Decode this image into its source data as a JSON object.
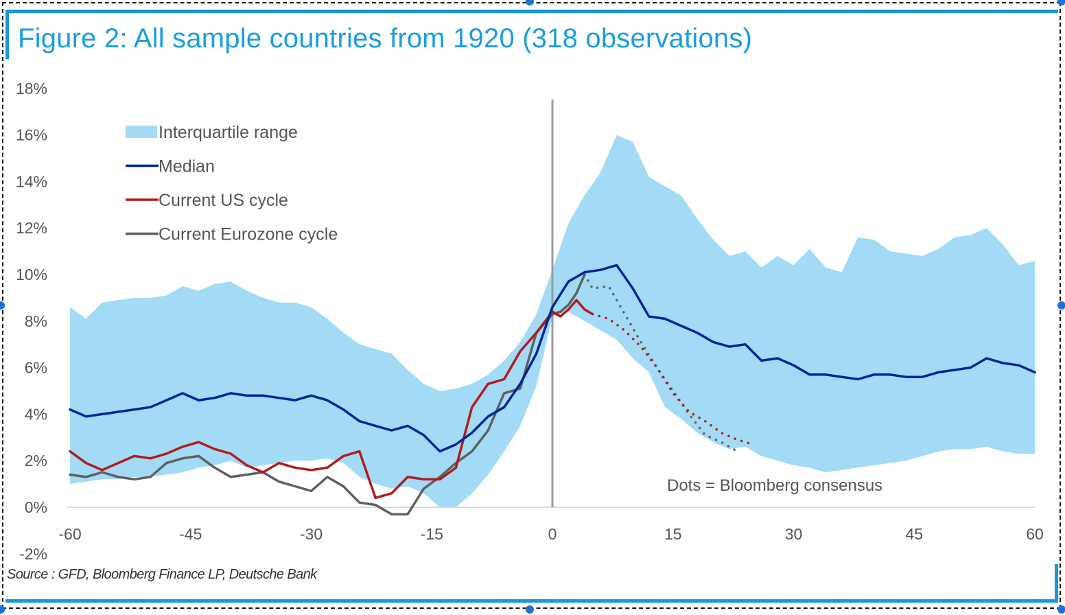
{
  "figure": {
    "title": "Figure 2: All sample countries from 1920 (318 observations)",
    "source": "Source : GFD, Bloomberg Finance LP, Deutsche Bank"
  },
  "colors": {
    "title": "#1a9ee0",
    "frame": "#1898d8",
    "iqr": "#a3dbf6",
    "median": "#00239c",
    "us": "#b01c1c",
    "ez": "#606060",
    "zero_line": "#9a9a9a",
    "handle": "#1a73d9"
  },
  "chart_data": {
    "type": "area",
    "title": "Figure 2: All sample countries from 1920 (318 observations)",
    "xlabel": "",
    "ylabel": "",
    "xlim": [
      -60,
      60
    ],
    "ylim": [
      -2,
      18
    ],
    "xticks": [
      -60,
      -45,
      -30,
      -15,
      0,
      15,
      30,
      45,
      60
    ],
    "xtick_labels": [
      "-60",
      "-45",
      "-30",
      "-15",
      "0",
      "15",
      "30",
      "45",
      "60"
    ],
    "yticks": [
      -2,
      0,
      2,
      4,
      6,
      8,
      10,
      12,
      14,
      16,
      18
    ],
    "ytick_labels": [
      "-2%",
      "0%",
      "2%",
      "4%",
      "6%",
      "8%",
      "10%",
      "12%",
      "14%",
      "16%",
      "18%"
    ],
    "grid": false,
    "vertical_line_at": 0,
    "legend": {
      "placement": "top-left",
      "entries": [
        {
          "label": "Interquartile range",
          "type": "area",
          "series": "iqr"
        },
        {
          "label": "Median",
          "type": "line",
          "series": "median"
        },
        {
          "label": "Current US cycle",
          "type": "line",
          "series": "us"
        },
        {
          "label": "Current Eurozone cycle",
          "type": "line",
          "series": "ez"
        }
      ]
    },
    "annotation": "Dots = Bloomberg consensus",
    "iqr": {
      "name": "Interquartile range",
      "x": [
        -60,
        -58,
        -56,
        -54,
        -52,
        -50,
        -48,
        -46,
        -44,
        -42,
        -40,
        -38,
        -36,
        -34,
        -32,
        -30,
        -28,
        -26,
        -24,
        -22,
        -20,
        -18,
        -16,
        -14,
        -12,
        -10,
        -8,
        -6,
        -4,
        -2,
        0,
        2,
        4,
        6,
        8,
        10,
        12,
        14,
        16,
        18,
        20,
        22,
        24,
        26,
        28,
        30,
        32,
        34,
        36,
        38,
        40,
        42,
        44,
        46,
        48,
        50,
        52,
        54,
        56,
        58,
        60
      ],
      "lower": [
        1.0,
        1.1,
        1.2,
        1.2,
        1.3,
        1.3,
        1.4,
        1.5,
        1.7,
        1.8,
        2.0,
        1.7,
        1.8,
        1.9,
        2.0,
        2.0,
        2.1,
        1.9,
        1.3,
        1.0,
        0.8,
        0.9,
        0.6,
        0.0,
        0.0,
        0.6,
        1.4,
        2.4,
        3.5,
        5.2,
        8.2,
        8.4,
        8.0,
        7.6,
        7.2,
        6.4,
        5.8,
        4.3,
        3.8,
        3.2,
        2.8,
        2.5,
        2.6,
        2.2,
        2.0,
        1.8,
        1.7,
        1.5,
        1.6,
        1.7,
        1.8,
        1.9,
        2.0,
        2.2,
        2.4,
        2.5,
        2.5,
        2.6,
        2.4,
        2.3,
        2.3
      ],
      "upper": [
        8.6,
        8.1,
        8.8,
        8.9,
        9.0,
        9.0,
        9.1,
        9.5,
        9.3,
        9.6,
        9.7,
        9.3,
        9.0,
        8.8,
        8.8,
        8.6,
        8.1,
        7.5,
        7.0,
        6.8,
        6.6,
        5.9,
        5.3,
        5.0,
        5.1,
        5.3,
        5.7,
        6.3,
        7.1,
        8.3,
        10.2,
        12.2,
        13.4,
        14.4,
        16.0,
        15.7,
        14.2,
        13.8,
        13.4,
        12.4,
        11.5,
        10.8,
        11.0,
        10.3,
        10.8,
        10.4,
        11.1,
        10.3,
        10.1,
        11.6,
        11.5,
        11.0,
        10.9,
        10.8,
        11.1,
        11.6,
        11.7,
        12.0,
        11.3,
        10.4,
        10.6
      ]
    },
    "series": [
      {
        "name": "Median",
        "style": "solid",
        "x": [
          -60,
          -58,
          -56,
          -54,
          -52,
          -50,
          -48,
          -46,
          -44,
          -42,
          -40,
          -38,
          -36,
          -34,
          -32,
          -30,
          -28,
          -26,
          -24,
          -22,
          -20,
          -18,
          -16,
          -14,
          -12,
          -10,
          -8,
          -6,
          -4,
          -2,
          0,
          2,
          4,
          6,
          8,
          10,
          12,
          14,
          16,
          18,
          20,
          22,
          24,
          26,
          28,
          30,
          32,
          34,
          36,
          38,
          40,
          42,
          44,
          46,
          48,
          50,
          52,
          54,
          56,
          58,
          60
        ],
        "values": [
          4.2,
          3.9,
          4.0,
          4.1,
          4.2,
          4.3,
          4.6,
          4.9,
          4.6,
          4.7,
          4.9,
          4.8,
          4.8,
          4.7,
          4.6,
          4.8,
          4.6,
          4.2,
          3.7,
          3.5,
          3.3,
          3.5,
          3.1,
          2.4,
          2.7,
          3.2,
          3.9,
          4.3,
          5.3,
          6.6,
          8.6,
          9.7,
          10.1,
          10.2,
          10.4,
          9.4,
          8.2,
          8.1,
          7.8,
          7.5,
          7.1,
          6.9,
          7.0,
          6.3,
          6.4,
          6.1,
          5.7,
          5.7,
          5.6,
          5.5,
          5.7,
          5.7,
          5.6,
          5.6,
          5.8,
          5.9,
          6.0,
          6.4,
          6.2,
          6.1,
          5.8
        ]
      },
      {
        "name": "Current US cycle",
        "style": "solid",
        "x": [
          -60,
          -58,
          -56,
          -54,
          -52,
          -50,
          -48,
          -46,
          -44,
          -42,
          -40,
          -38,
          -36,
          -34,
          -32,
          -30,
          -28,
          -26,
          -24,
          -22,
          -20,
          -18,
          -16,
          -14,
          -12,
          -10,
          -8,
          -6,
          -4,
          -2,
          0,
          1,
          2,
          3,
          4,
          5
        ],
        "values": [
          2.4,
          1.9,
          1.6,
          1.9,
          2.2,
          2.1,
          2.3,
          2.6,
          2.8,
          2.5,
          2.3,
          1.8,
          1.5,
          1.9,
          1.7,
          1.6,
          1.7,
          2.2,
          2.4,
          0.4,
          0.6,
          1.3,
          1.2,
          1.2,
          1.7,
          4.3,
          5.3,
          5.5,
          6.7,
          7.5,
          8.4,
          8.2,
          8.5,
          8.9,
          8.5,
          8.3
        ]
      },
      {
        "name": "Current US cycle (consensus)",
        "style": "dotted",
        "x": [
          5,
          7,
          9,
          11,
          13,
          15,
          17,
          19,
          21,
          23,
          25
        ],
        "values": [
          8.3,
          8.1,
          7.6,
          6.9,
          6.0,
          4.9,
          4.1,
          3.7,
          3.2,
          2.9,
          2.7
        ]
      },
      {
        "name": "Current Eurozone cycle",
        "style": "solid",
        "x": [
          -60,
          -58,
          -56,
          -54,
          -52,
          -50,
          -48,
          -46,
          -44,
          -42,
          -40,
          -38,
          -36,
          -34,
          -32,
          -30,
          -28,
          -26,
          -24,
          -22,
          -20,
          -18,
          -16,
          -14,
          -12,
          -10,
          -8,
          -6,
          -4,
          -2,
          0,
          1,
          2,
          3,
          4
        ],
        "values": [
          1.4,
          1.3,
          1.5,
          1.3,
          1.2,
          1.3,
          1.9,
          2.1,
          2.2,
          1.7,
          1.3,
          1.4,
          1.5,
          1.1,
          0.9,
          0.7,
          1.3,
          0.9,
          0.2,
          0.1,
          -0.3,
          -0.3,
          0.8,
          1.3,
          1.9,
          2.4,
          3.3,
          4.9,
          5.1,
          7.5,
          8.3,
          8.4,
          8.7,
          9.2,
          10.0
        ]
      },
      {
        "name": "Current Eurozone cycle (consensus)",
        "style": "dotted",
        "x": [
          4,
          5,
          7,
          9,
          11,
          13,
          15,
          17,
          19,
          21,
          23
        ],
        "values": [
          10.0,
          9.4,
          9.5,
          8.3,
          7.1,
          6.0,
          5.0,
          4.0,
          3.1,
          2.8,
          2.4
        ]
      }
    ]
  }
}
